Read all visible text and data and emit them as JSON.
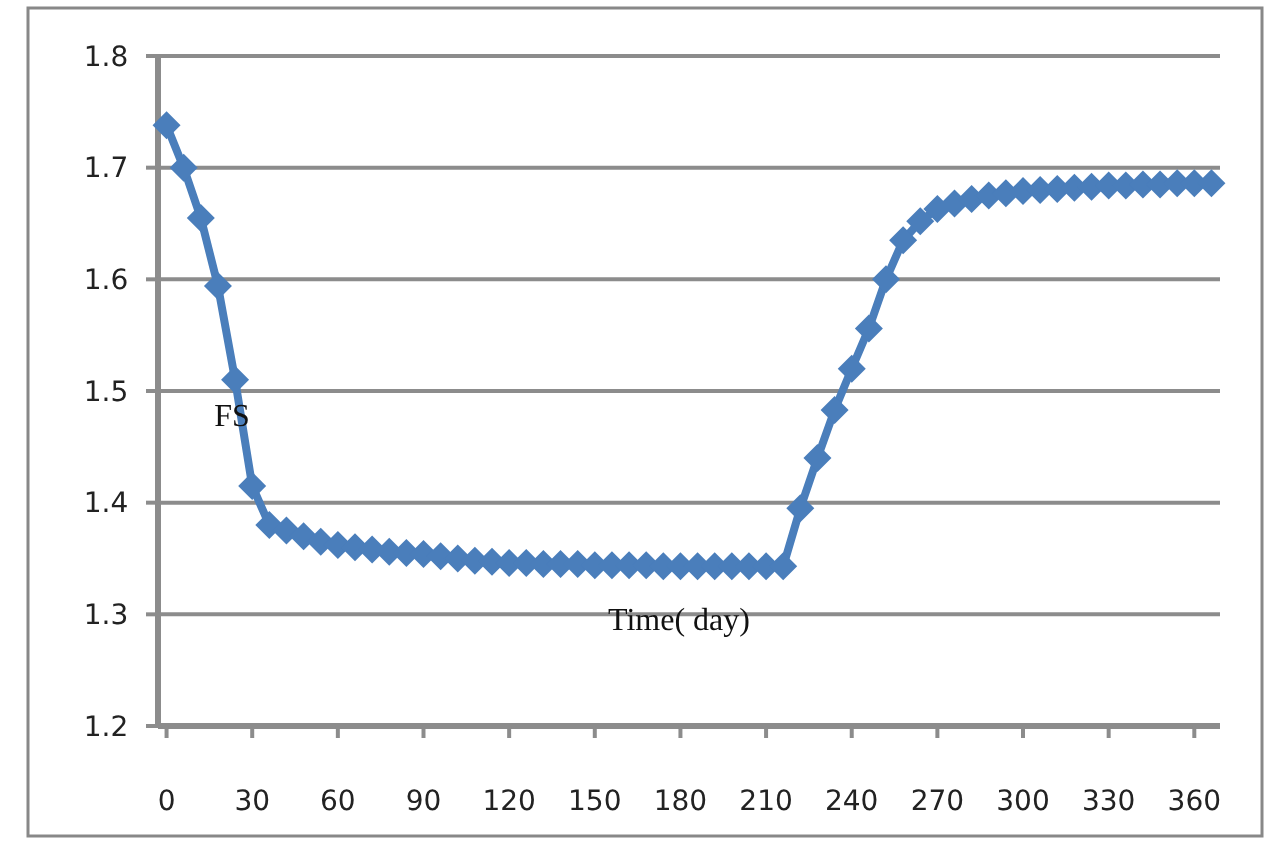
{
  "chart_data": {
    "type": "line",
    "x": [
      0,
      6,
      12,
      18,
      24,
      30,
      36,
      42,
      48,
      54,
      60,
      66,
      72,
      78,
      84,
      90,
      96,
      102,
      108,
      114,
      120,
      126,
      132,
      138,
      144,
      150,
      156,
      162,
      168,
      174,
      180,
      186,
      192,
      198,
      204,
      210,
      216,
      222,
      228,
      234,
      240,
      246,
      252,
      258,
      264,
      270,
      276,
      282,
      288,
      294,
      300,
      306,
      312,
      318,
      324,
      330,
      336,
      342,
      348,
      354,
      360,
      366
    ],
    "series": [
      {
        "color": "#4a7ebb",
        "values": [
          1.738,
          1.7,
          1.655,
          1.594,
          1.51,
          1.415,
          1.38,
          1.375,
          1.37,
          1.365,
          1.362,
          1.36,
          1.358,
          1.356,
          1.355,
          1.354,
          1.352,
          1.35,
          1.348,
          1.347,
          1.346,
          1.346,
          1.345,
          1.345,
          1.345,
          1.344,
          1.344,
          1.344,
          1.344,
          1.343,
          1.343,
          1.343,
          1.343,
          1.343,
          1.343,
          1.343,
          1.343,
          1.395,
          1.44,
          1.483,
          1.52,
          1.556,
          1.6,
          1.635,
          1.652,
          1.663,
          1.668,
          1.672,
          1.675,
          1.677,
          1.679,
          1.68,
          1.681,
          1.682,
          1.683,
          1.684,
          1.684,
          1.685,
          1.685,
          1.686,
          1.686,
          1.686
        ]
      }
    ],
    "xlim": [
      -3,
      369
    ],
    "xticks": [
      0,
      30,
      60,
      90,
      120,
      150,
      180,
      210,
      240,
      270,
      300,
      330,
      360
    ],
    "ylim": [
      1.2,
      1.8
    ],
    "yticks": [
      {
        "value": 1.2,
        "label": "1.2"
      },
      {
        "value": 1.3,
        "label": "1.3"
      },
      {
        "value": 1.4,
        "label": "1.4"
      },
      {
        "value": 1.5,
        "label": "1.5"
      },
      {
        "value": 1.6,
        "label": "1.6"
      },
      {
        "value": 1.7,
        "label": "1.7"
      },
      {
        "value": 1.8,
        "label": "1.8"
      }
    ],
    "grid": "y",
    "marker": "diamond",
    "line_style": "solid",
    "annotations": [
      "FS",
      "Time( day)"
    ]
  }
}
